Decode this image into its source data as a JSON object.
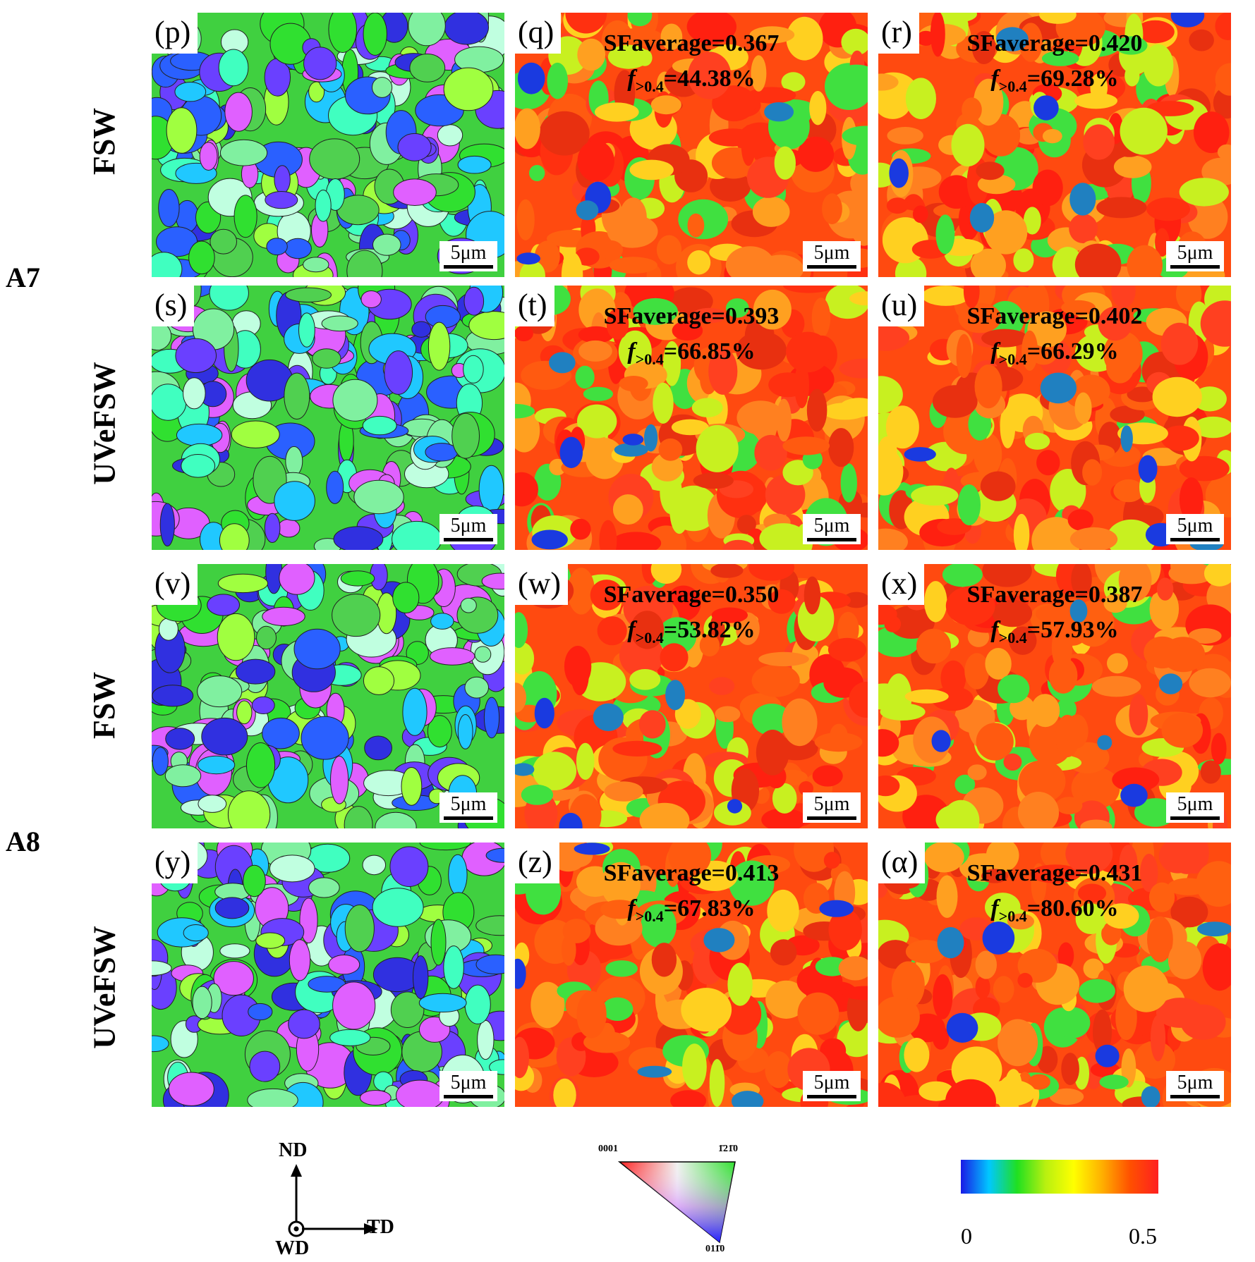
{
  "groups": [
    "A7",
    "A8"
  ],
  "rows": [
    {
      "label": "FSW",
      "group": "A7",
      "panels": [
        {
          "tag": "(p)",
          "type": "ipf"
        },
        {
          "tag": "(q)",
          "type": "sf",
          "sf": "SFaverage=0.367",
          "frac": "44.38%"
        },
        {
          "tag": "(r)",
          "type": "sf",
          "sf": "SFaverage=0.420",
          "frac": "69.28%"
        }
      ]
    },
    {
      "label": "UVeFSW",
      "group": "A7",
      "panels": [
        {
          "tag": "(s)",
          "type": "ipf"
        },
        {
          "tag": "(t)",
          "type": "sf",
          "sf": "SFaverage=0.393",
          "frac": "66.85%"
        },
        {
          "tag": "(u)",
          "type": "sf",
          "sf": "SFaverage=0.402",
          "frac": "66.29%"
        }
      ]
    },
    {
      "label": "FSW",
      "group": "A8",
      "panels": [
        {
          "tag": "(v)",
          "type": "ipf"
        },
        {
          "tag": "(w)",
          "type": "sf",
          "sf": "SFaverage=0.350",
          "frac": "53.82%"
        },
        {
          "tag": "(x)",
          "type": "sf",
          "sf": "SFaverage=0.387",
          "frac": "57.93%"
        }
      ]
    },
    {
      "label": "UVeFSW",
      "group": "A8",
      "panels": [
        {
          "tag": "(y)",
          "type": "ipf"
        },
        {
          "tag": "(z)",
          "type": "sf",
          "sf": "SFaverage=0.413",
          "frac": "67.83%"
        },
        {
          "tag": "(α)",
          "type": "sf",
          "sf": "SFaverage=0.431",
          "frac": "80.60%"
        }
      ]
    }
  ],
  "frac_symbol": "f",
  "frac_sub": ">0.4",
  "scale_bar": "5μm",
  "axes": {
    "nd": "ND",
    "td": "TD",
    "wd": "WD"
  },
  "ipf_key": {
    "c0001": "0001",
    "c1210": "1̄21̄0",
    "c0110": "011̄0"
  },
  "colorbar": {
    "min": "0",
    "max": "0.5",
    "colors": [
      "#1a1ae6",
      "#00c8ff",
      "#20e020",
      "#b8f010",
      "#ffff00",
      "#ffb000",
      "#ff5000",
      "#ff2020"
    ]
  }
}
